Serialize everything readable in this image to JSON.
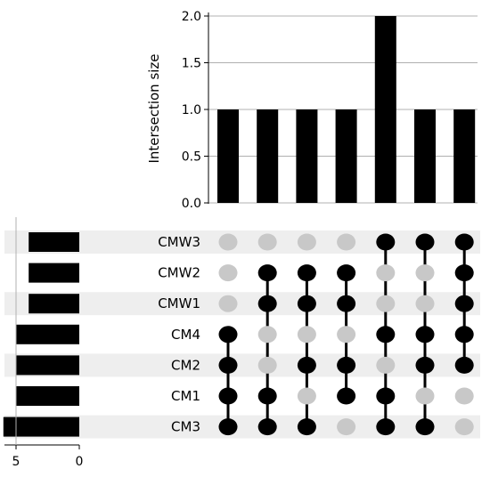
{
  "chart_data": {
    "type": "upset",
    "intersection_axis": {
      "ylabel": "Intersection size",
      "ylim": [
        0,
        2
      ],
      "ticks": [
        "0.0",
        "0.5",
        "1.0",
        "1.5",
        "2.0"
      ],
      "grid": true
    },
    "sets": [
      {
        "name": "CMW3",
        "size": 4
      },
      {
        "name": "CMW2",
        "size": 4
      },
      {
        "name": "CMW1",
        "size": 4
      },
      {
        "name": "CM4",
        "size": 5
      },
      {
        "name": "CM2",
        "size": 5
      },
      {
        "name": "CM1",
        "size": 5
      },
      {
        "name": "CM3",
        "size": 6
      }
    ],
    "set_size_axis": {
      "ticks": [
        "5",
        "0"
      ],
      "inverted": true,
      "xlim": [
        0,
        5.4
      ]
    },
    "intersections": [
      {
        "size": 1,
        "members": [
          "CM4",
          "CM2",
          "CM1",
          "CM3"
        ]
      },
      {
        "size": 1,
        "members": [
          "CMW2",
          "CMW1",
          "CM1",
          "CM3"
        ]
      },
      {
        "size": 1,
        "members": [
          "CMW2",
          "CMW1",
          "CM2",
          "CM3"
        ]
      },
      {
        "size": 1,
        "members": [
          "CMW2",
          "CMW1",
          "CM2",
          "CM1"
        ]
      },
      {
        "size": 2,
        "members": [
          "CMW3",
          "CM4",
          "CM1",
          "CM3"
        ]
      },
      {
        "size": 1,
        "members": [
          "CMW3",
          "CM4",
          "CM2",
          "CM3"
        ]
      },
      {
        "size": 1,
        "members": [
          "CMW3",
          "CMW2",
          "CMW1",
          "CM4",
          "CM2"
        ]
      }
    ],
    "colors": {
      "bar": "#000000",
      "active_dot": "#000000",
      "inactive_dot": "#c8c8c8",
      "row_stripe": "#eeeeee",
      "grid": "#b0b0b0"
    }
  }
}
